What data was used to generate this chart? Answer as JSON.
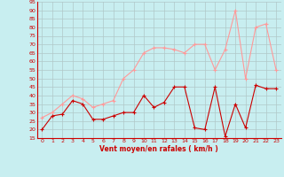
{
  "title": "",
  "xlabel": "Vent moyen/en rafales ( km/h )",
  "background_color": "#c8eef0",
  "grid_color": "#b0c8c8",
  "x_values": [
    0,
    1,
    2,
    3,
    4,
    5,
    6,
    7,
    8,
    9,
    10,
    11,
    12,
    13,
    14,
    15,
    16,
    17,
    18,
    19,
    20,
    21,
    22,
    23
  ],
  "y_mean": [
    20,
    28,
    29,
    37,
    35,
    26,
    26,
    28,
    30,
    30,
    40,
    33,
    36,
    45,
    45,
    21,
    20,
    45,
    16,
    35,
    21,
    46,
    44,
    44
  ],
  "y_gust": [
    27,
    30,
    35,
    40,
    38,
    33,
    35,
    37,
    50,
    55,
    65,
    68,
    68,
    67,
    65,
    70,
    70,
    55,
    67,
    90,
    50,
    80,
    82,
    55
  ],
  "mean_color": "#cc0000",
  "gust_color": "#ff9999",
  "ylim": [
    15,
    95
  ],
  "yticks": [
    15,
    20,
    25,
    30,
    35,
    40,
    45,
    50,
    55,
    60,
    65,
    70,
    75,
    80,
    85,
    90,
    95
  ],
  "xlim": [
    -0.5,
    23.5
  ]
}
